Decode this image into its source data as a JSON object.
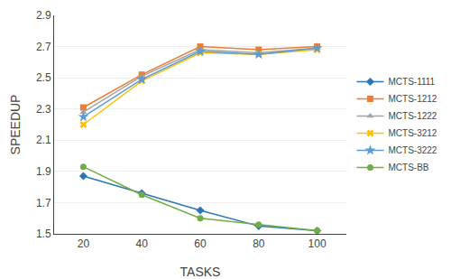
{
  "chart_data": {
    "type": "line",
    "x": [
      20,
      40,
      60,
      80,
      100
    ],
    "series": [
      {
        "name": "MCTS-1111",
        "color": "#2E75B6",
        "marker": "diamond",
        "line_style": "solid",
        "values": [
          1.87,
          1.76,
          1.65,
          1.55,
          1.52
        ]
      },
      {
        "name": "MCTS-1212",
        "color": "#ED7D31",
        "marker": "square",
        "line_style": "solid",
        "values": [
          2.31,
          2.52,
          2.7,
          2.68,
          2.7
        ]
      },
      {
        "name": "MCTS-1222",
        "color": "#A5A5A5",
        "marker": "triangle-up",
        "line_style": "solid",
        "values": [
          2.28,
          2.51,
          2.68,
          2.66,
          2.69
        ]
      },
      {
        "name": "MCTS-3212",
        "color": "#FFC000",
        "marker": "x",
        "line_style": "solid",
        "values": [
          2.2,
          2.48,
          2.66,
          2.65,
          2.68
        ]
      },
      {
        "name": "MCTS-3222",
        "color": "#5B9BD5",
        "marker": "star",
        "line_style": "solid",
        "values": [
          2.25,
          2.49,
          2.67,
          2.65,
          2.69
        ]
      },
      {
        "name": "MCTS-BB",
        "color": "#70AD47",
        "marker": "circle",
        "line_style": "solid",
        "values": [
          1.93,
          1.75,
          1.6,
          1.56,
          1.52
        ]
      }
    ],
    "xlabel": "TASKS",
    "ylabel": "SPEEDUP",
    "xlim": [
      10,
      110
    ],
    "xticks": [
      20,
      40,
      60,
      80,
      100
    ],
    "ylim": [
      1.5,
      2.9
    ],
    "yticks": [
      1.5,
      1.7,
      1.9,
      2.1,
      2.3,
      2.5,
      2.7,
      2.9
    ],
    "grid": "y",
    "legend": "right"
  }
}
